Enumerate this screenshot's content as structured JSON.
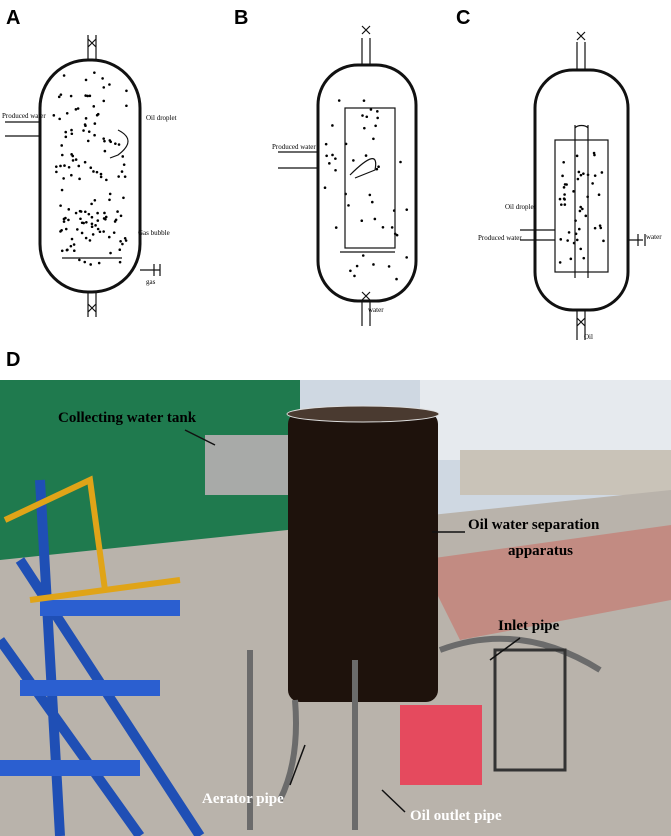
{
  "panels": [
    {
      "label": "A",
      "annotations": [
        "Produced water",
        "Oil droplet",
        "Gas bubble",
        "gas"
      ]
    },
    {
      "label": "B",
      "annotations": [
        "Produced water",
        "water"
      ]
    },
    {
      "label": "C",
      "annotations": [
        "Oil droplet",
        "Produced water",
        "water",
        "Oil"
      ]
    },
    {
      "label": "D",
      "annotations": [
        "Collecting water tank",
        [
          "Oil water separation",
          "apparatus"
        ],
        "Inlet pipe",
        "Aerator pipe",
        "Oil outlet pipe"
      ]
    }
  ]
}
